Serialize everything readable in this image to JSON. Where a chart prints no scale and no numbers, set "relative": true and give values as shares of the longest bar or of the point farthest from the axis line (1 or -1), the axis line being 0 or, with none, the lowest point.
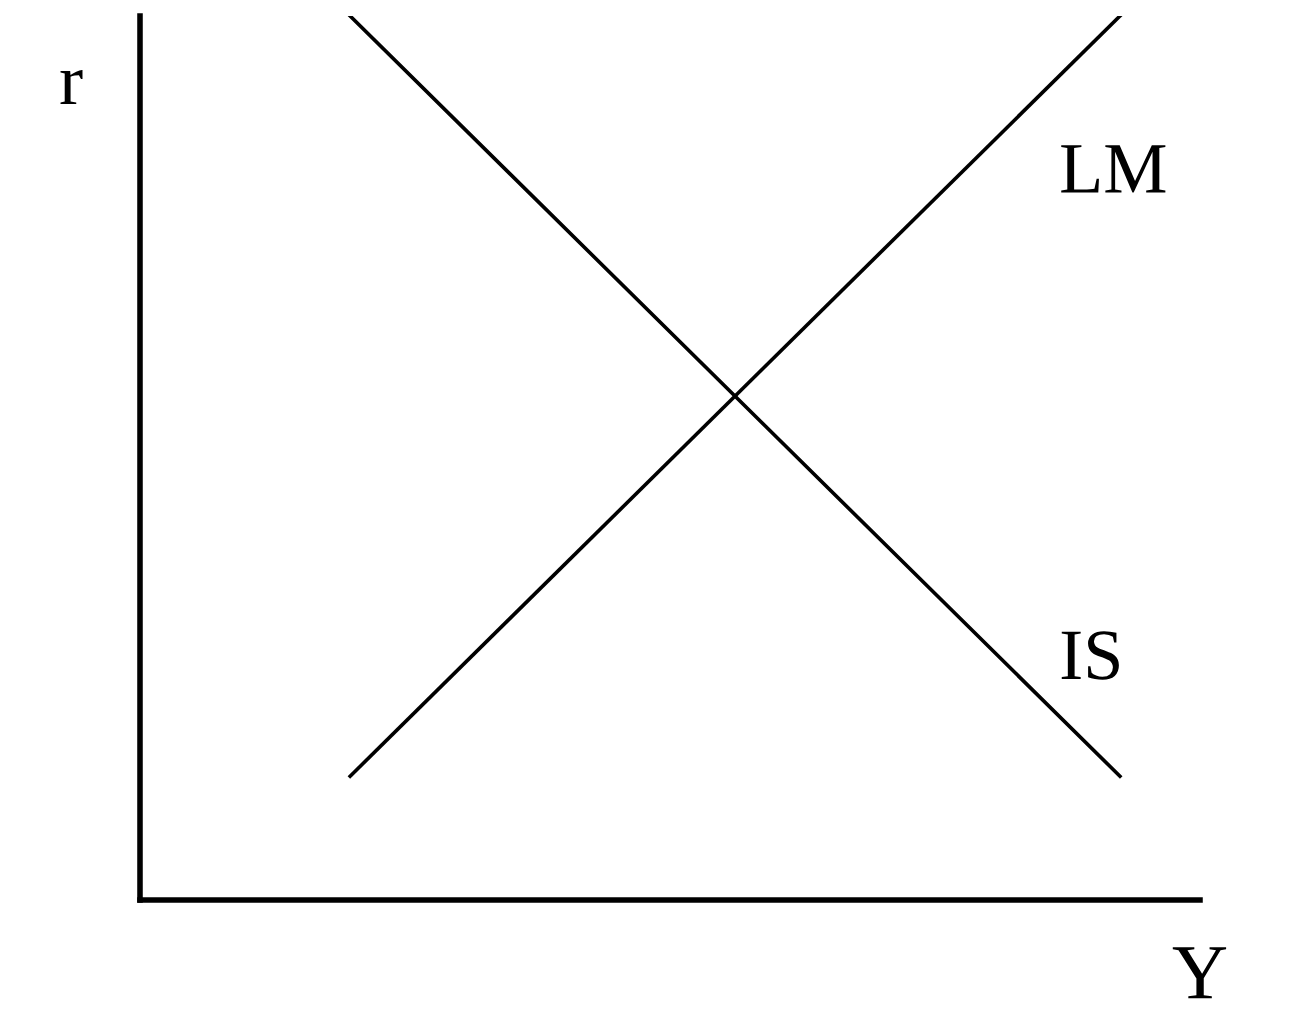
{
  "chart_data": {
    "type": "line",
    "relative": true,
    "xlabel": "Y",
    "ylabel": "r",
    "categories": [
      null,
      null
    ],
    "series": [
      {
        "name": "LM",
        "color": "#000000",
        "values": [
          0.14,
          1.0
        ]
      },
      {
        "name": "IS",
        "color": "#000000",
        "values": [
          1.0,
          0.14
        ]
      }
    ],
    "legend": false,
    "marker": "none",
    "line_style": "solid"
  }
}
